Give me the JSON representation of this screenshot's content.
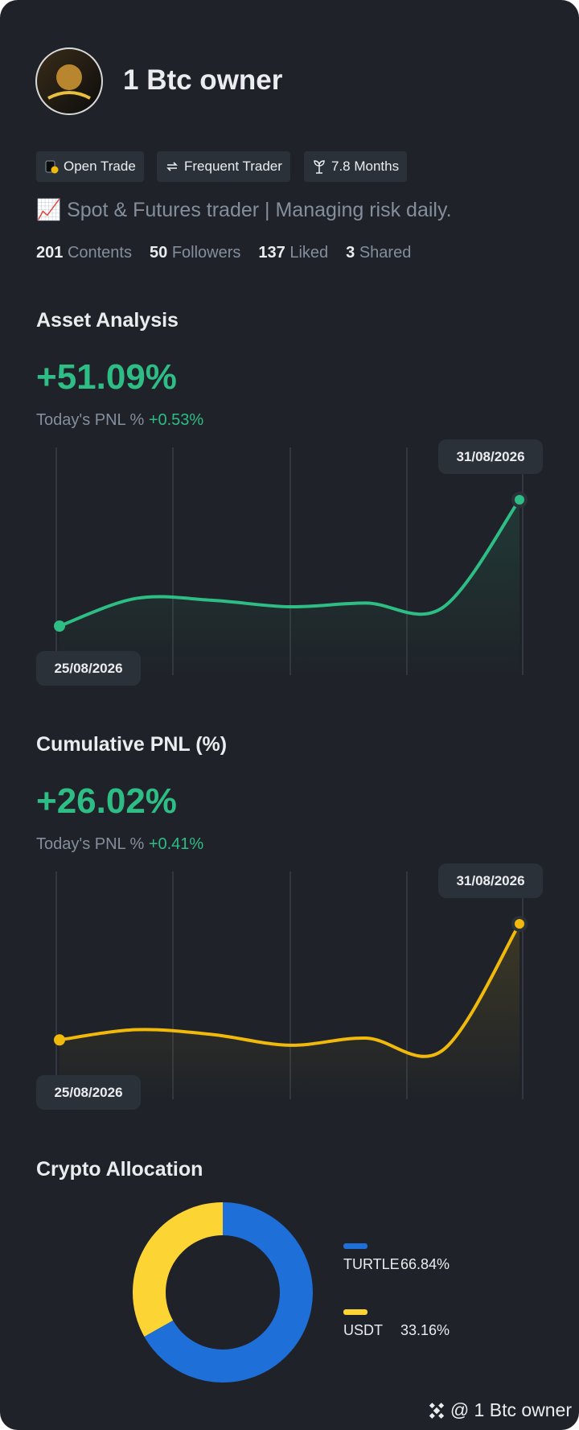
{
  "profile": {
    "name": "1 Btc owner",
    "tags": [
      "Open Trade",
      "Frequent Trader",
      "7.8 Months"
    ],
    "bio": "📈 Spot & Futures trader | Managing risk daily.",
    "stats": [
      {
        "value": 201,
        "label": "Contents"
      },
      {
        "value": 50,
        "label": "Followers"
      },
      {
        "value": 137,
        "label": "Liked"
      },
      {
        "value": 3,
        "label": "Shared"
      }
    ]
  },
  "asset_analysis": {
    "title": "Asset Analysis",
    "headline": "+51.09%",
    "pnl_label": "Today's PNL %",
    "pnl_value": "+0.53%",
    "chart": {
      "type": "line",
      "x": [
        "25/08/2026",
        null,
        null,
        null,
        null,
        null,
        "31/08/2026"
      ],
      "series": [
        {
          "color": "#2ebd85",
          "values": [
            0,
            11.2,
            10.4,
            7.8,
            9.3,
            7.5,
            51.09
          ]
        }
      ]
    }
  },
  "cumulative_pnl": {
    "title": "Cumulative PNL (%)",
    "headline": "+26.02%",
    "pnl_label": "Today's PNL %",
    "pnl_value": "+0.41%",
    "chart": {
      "type": "line",
      "x": [
        "25/08/2026",
        null,
        null,
        null,
        null,
        null,
        "31/08/2026"
      ],
      "series": [
        {
          "color": "#f0b90b",
          "values": [
            0,
            2.3,
            1.2,
            -1.2,
            0.4,
            -2.3,
            26.02
          ]
        }
      ]
    }
  },
  "crypto_allocation": {
    "title": "Crypto Allocation",
    "chart": {
      "type": "donut",
      "categories": [
        "TURTLE",
        "USDT"
      ],
      "values": [
        66.84,
        33.16
      ],
      "value_labels": [
        "66.84%",
        "33.16%"
      ],
      "colors": [
        "#1f6fd8",
        "#fcd535"
      ]
    }
  },
  "footer": "@ 1 Btc owner"
}
